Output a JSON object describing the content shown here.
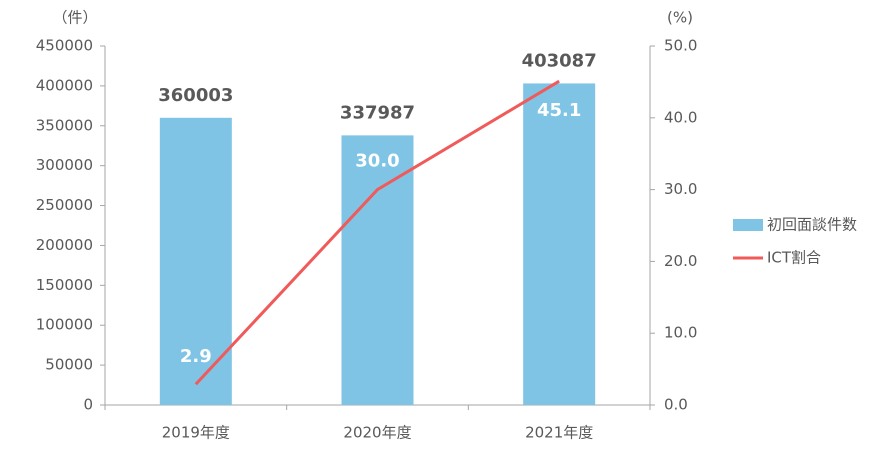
{
  "chart_data": {
    "type": "bar",
    "ylabel": "（件）",
    "y2label": "(%)",
    "categories": [
      "2019年度",
      "2020年度",
      "2021年度"
    ],
    "series": [
      {
        "name": "初回面談件数",
        "color": "#7fc4e4",
        "values": [
          360003,
          337987,
          403087
        ]
      },
      {
        "name": "ICT割合",
        "color": "#f05a5a",
        "type": "line",
        "axis": "y2",
        "values": [
          2.9,
          30.0,
          45.1
        ],
        "value_labels": [
          "2.9",
          "30.0",
          "45.1"
        ]
      }
    ],
    "ylim": [
      0,
      450000
    ],
    "yticks": [
      0,
      50000,
      100000,
      150000,
      200000,
      250000,
      300000,
      350000,
      400000,
      450000
    ],
    "y2lim": [
      0,
      50
    ],
    "y2ticks": [
      {
        "value": 0,
        "label": "0.0"
      },
      {
        "value": 10,
        "label": "10.0"
      },
      {
        "value": 20,
        "label": "20.0"
      },
      {
        "value": 30,
        "label": "30.0"
      },
      {
        "value": 40,
        "label": "40.0"
      },
      {
        "value": 50,
        "label": "50.0"
      }
    ],
    "legend": "right"
  }
}
